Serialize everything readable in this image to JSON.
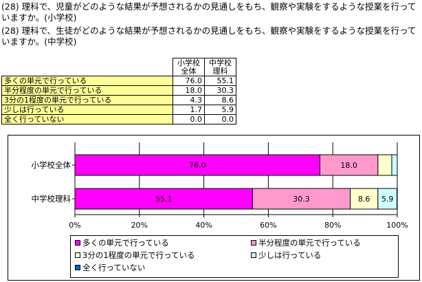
{
  "questions": {
    "q1": "(28) 理科で、児童がどのような結果が予想されるかの見通しをもち、観察や実験をするような授業を行っていますか。(小学校)",
    "q2": "(28) 理科で、生徒がどのような結果が予想されるかの見通しをもち、観察や実験をするような授業を行っていますか。(中学校)"
  },
  "table": {
    "headers": [
      "小学校全体",
      "中学校理科"
    ],
    "rows": [
      {
        "label": "多くの単元で行っている",
        "v1": "76.0",
        "v2": "55.1"
      },
      {
        "label": "半分程度の単元で行っている",
        "v1": "18.0",
        "v2": "30.3"
      },
      {
        "label": "3分の1程度の単元で行っている",
        "v1": "4.3",
        "v2": "8.6"
      },
      {
        "label": "少しは行っている",
        "v1": "1.7",
        "v2": "5.9"
      },
      {
        "label": "全く行っていない",
        "v1": "0.0",
        "v2": "0.0"
      }
    ]
  },
  "chart_data": {
    "type": "bar",
    "orientation": "horizontal",
    "stacked": true,
    "percent_stacked": true,
    "categories": [
      "小学校全体",
      "中学校理科"
    ],
    "series": [
      {
        "name": "多くの単元で行っている",
        "values": [
          76.0,
          55.1
        ],
        "color": "#ff00ff",
        "labels": [
          "76.0",
          "55.1"
        ]
      },
      {
        "name": "半分程度の単元で行っている",
        "values": [
          18.0,
          30.3
        ],
        "color": "#ff99cc",
        "labels": [
          "18.0",
          "30.3"
        ]
      },
      {
        "name": "3分の1程度の単元で行っている",
        "values": [
          4.3,
          8.6
        ],
        "color": "#ffffcc",
        "labels": [
          "",
          "8.6"
        ]
      },
      {
        "name": "少しは行っている",
        "values": [
          1.7,
          5.9
        ],
        "color": "#ccffff",
        "labels": [
          "",
          "5.9"
        ]
      },
      {
        "name": "全く行っていない",
        "values": [
          0.0,
          0.0
        ],
        "color": "#0066cc",
        "labels": [
          "",
          ""
        ]
      }
    ],
    "xlim": [
      0,
      100
    ],
    "xticks": [
      "0%",
      "20%",
      "40%",
      "60%",
      "80%",
      "100%"
    ],
    "grid": true,
    "legend_position": "bottom"
  }
}
